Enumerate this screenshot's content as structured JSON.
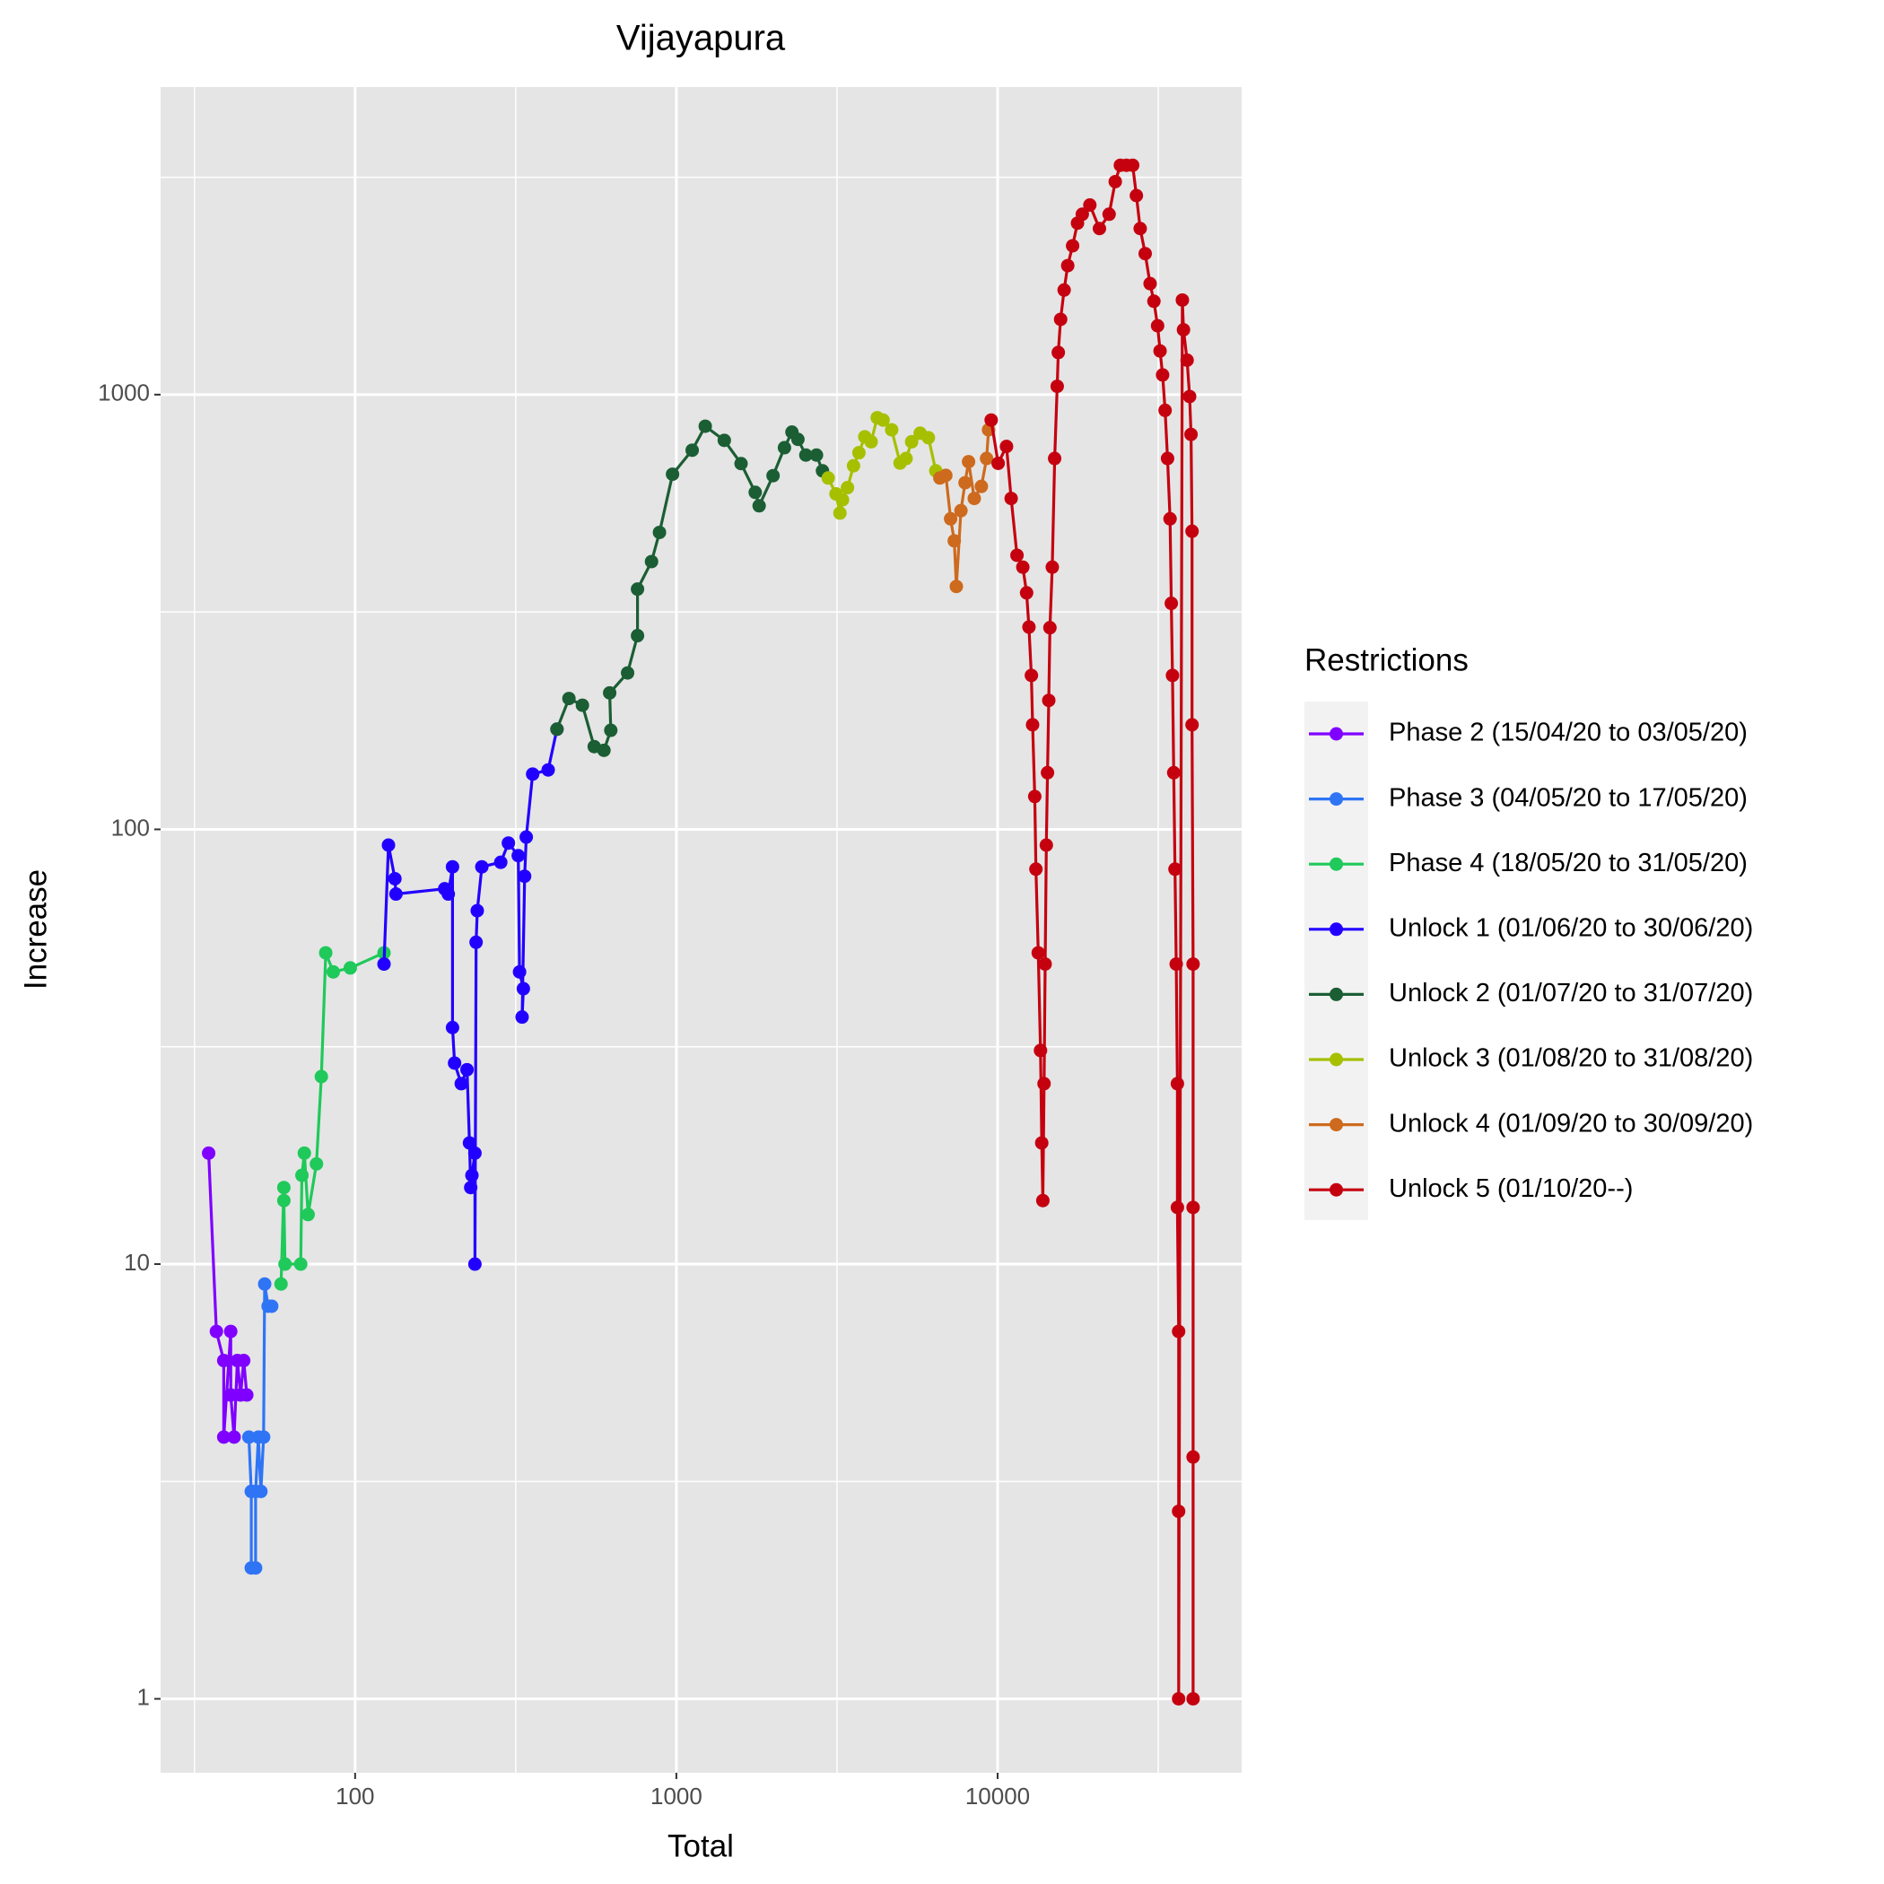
{
  "chart_data": {
    "type": "line",
    "title": "Vijayapura",
    "x_label": "Total",
    "y_label": "Increase",
    "legend_title": "Restrictions",
    "legend_position": "right",
    "log_x": true,
    "log_y": true,
    "grid": true,
    "xlim": [
      24.8,
      57500
    ],
    "ylim": [
      0.676,
      5100
    ],
    "xticks": [
      100,
      1000,
      10000
    ],
    "yticks": [
      1,
      10,
      100,
      1000
    ],
    "x_minor_grid": [
      31.62,
      316.2,
      3162,
      31623
    ],
    "y_minor_grid": [
      3.162,
      31.62,
      316.2,
      3162
    ],
    "series": [
      {
        "name": "Phase 2 (15/04/20 to 03/05/20)",
        "color": "#7f00ff",
        "x": [
          35,
          37,
          39,
          39,
          41,
          41,
          42,
          43,
          44,
          45,
          46
        ],
        "values": [
          18,
          7,
          6,
          4,
          7,
          5,
          4,
          6,
          5,
          6,
          5
        ]
      },
      {
        "name": "Phase 3 (04/05/20 to 17/05/20)",
        "color": "#2f74f5",
        "x": [
          46.7,
          47.5,
          47.5,
          49,
          49,
          50,
          50.9,
          51.9,
          52.3,
          53.6,
          55
        ],
        "values": [
          4,
          3,
          2,
          2,
          3,
          4,
          3,
          4,
          9,
          8,
          8
        ]
      },
      {
        "name": "Phase 4 (18/05/20 to 31/05/20)",
        "color": "#1fc95a",
        "x": [
          58.8,
          60,
          60,
          60.5,
          67.7,
          68.3,
          69.5,
          71.4,
          75.8,
          78.5,
          81,
          85.5,
          96.6,
          123
        ],
        "values": [
          9,
          15,
          14,
          10,
          10,
          16,
          18,
          13,
          17,
          27,
          52,
          47,
          48,
          52
        ]
      },
      {
        "name": "Unlock 1 (01/06/20 to 30/06/20)",
        "color": "#2200ff",
        "x": [
          123,
          127,
          133,
          134,
          190,
          195,
          201,
          201,
          204,
          214,
          223,
          227,
          229,
          231,
          236,
          236,
          238,
          240,
          248,
          284,
          300,
          322,
          325,
          334,
          331,
          337,
          341,
          357,
          399,
          425
        ],
        "values": [
          49,
          92,
          77,
          71,
          73,
          71,
          82,
          35,
          29,
          26,
          28,
          19,
          15,
          16,
          18,
          10,
          55,
          65,
          82,
          84,
          93,
          87,
          47,
          43,
          37,
          78,
          96,
          134,
          137,
          170
        ]
      },
      {
        "name": "Unlock 2 (01/07/20 to 31/07/20)",
        "color": "#1b5e34",
        "x": [
          425,
          463,
          510,
          555,
          595,
          625,
          620,
          705,
          757,
          757,
          837,
          886,
          973,
          1120,
          1230,
          1410,
          1590,
          1760,
          1810,
          2000,
          2170,
          2290,
          2390,
          2530,
          2730,
          2850
        ],
        "values": [
          170,
          200,
          193,
          155,
          152,
          169,
          206,
          229,
          279,
          357,
          413,
          482,
          656,
          745,
          846,
          785,
          694,
          596,
          555,
          651,
          755,
          820,
          789,
          726,
          726,
          668
        ]
      },
      {
        "name": "Unlock 3 (01/08/20 to 31/08/20)",
        "color": "#a6c000",
        "x": [
          2970,
          3140,
          3230,
          3290,
          3410,
          3560,
          3700,
          3860,
          4040,
          4220,
          4400,
          4680,
          4970,
          5190,
          5400,
          5740,
          6090,
          6420
        ],
        "values": [
          643,
          591,
          534,
          573,
          611,
          686,
          735,
          800,
          779,
          885,
          874,
          830,
          696,
          713,
          779,
          815,
          796,
          668
        ]
      },
      {
        "name": "Unlock 4 (01/09/20 to 30/09/20)",
        "color": "#cd6a1e",
        "x": [
          6610,
          6900,
          7140,
          7330,
          7440,
          7690,
          7920,
          8120,
          8460,
          8900,
          9240,
          9370
        ],
        "values": [
          643,
          652,
          518,
          461,
          362,
          541,
          627,
          701,
          577,
          615,
          713,
          830
        ]
      },
      {
        "name": "Unlock 5 (01/10/20--)",
        "color": "#c5000f",
        "x": [
          9550,
          10040,
          10660,
          11020,
          11490,
          11980,
          12310,
          12520,
          12740,
          12850,
          13050,
          13160,
          13380,
          13600,
          13720,
          13830,
          13950,
          14060,
          14180,
          14300,
          14430,
          14550,
          14800,
          15050,
          15330,
          15450,
          15710,
          16110,
          16530,
          17120,
          17730,
          18350,
          19370,
          20750,
          22240,
          23240,
          24110,
          25170,
          26330,
          27040,
          27790,
          28800,
          29830,
          30660,
          31480,
          32040,
          32630,
          33220,
          33810,
          34420,
          34730,
          35030,
          35340,
          35660,
          35970,
          36280,
          36280,
          36600,
          36600,
          36600,
          37600,
          37900,
          38900,
          39600,
          40000,
          40300,
          40300,
          40600,
          40600,
          40600,
          40600
        ],
        "values": [
          874,
          695,
          760,
          577,
          427,
          401,
          350,
          292,
          226,
          174,
          119,
          81,
          52,
          31,
          19,
          14,
          26,
          49,
          92,
          135,
          198,
          291,
          401,
          713,
          1045,
          1250,
          1490,
          1740,
          1980,
          2200,
          2480,
          2600,
          2730,
          2410,
          2600,
          3090,
          3370,
          3370,
          3370,
          2870,
          2410,
          2110,
          1800,
          1640,
          1440,
          1260,
          1110,
          920,
          713,
          518,
          331,
          226,
          135,
          81,
          49,
          26,
          13.5,
          7,
          2.7,
          1,
          1650,
          1410,
          1200,
          990,
          810,
          485,
          174,
          49,
          13.5,
          3.6,
          1
        ]
      }
    ]
  }
}
